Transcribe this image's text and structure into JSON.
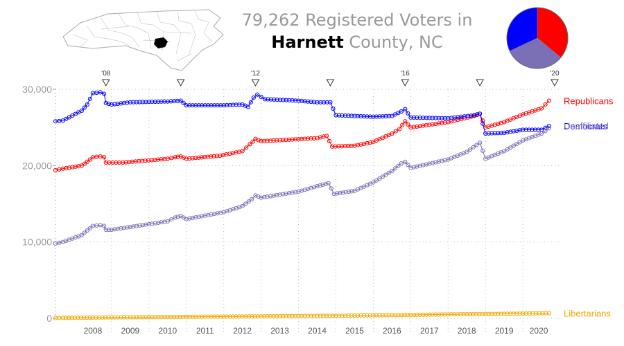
{
  "title": {
    "line1": "79,262 Registered Voters in",
    "county": "Harnett",
    "line2_rest": "County, NC"
  },
  "colors": {
    "republicans": "#ff0000",
    "democrats": "#0000ff",
    "unaffiliated": "#7b6fb5",
    "libertarians": "#f0a800",
    "axis": "#999999",
    "grid": "#bbbbbb"
  },
  "chart_data": {
    "type": "line",
    "ylim": [
      0,
      30000
    ],
    "y_ticks": [
      {
        "value": 0,
        "label": "0"
      },
      {
        "value": 10000,
        "label": "10,000"
      },
      {
        "value": 20000,
        "label": "20,000"
      },
      {
        "value": 30000,
        "label": "30,000"
      }
    ],
    "xlim": [
      2007.5,
      2020.85
    ],
    "x_ticks": [
      "2008",
      "2009",
      "2010",
      "2011",
      "2012",
      "2013",
      "2014",
      "2015",
      "2016",
      "2017",
      "2018",
      "2019",
      "2020"
    ],
    "election_markers": [
      {
        "x": 2008.85,
        "label": "'08"
      },
      {
        "x": 2010.85,
        "label": ""
      },
      {
        "x": 2012.85,
        "label": "'12"
      },
      {
        "x": 2014.85,
        "label": ""
      },
      {
        "x": 2016.85,
        "label": "'16"
      },
      {
        "x": 2018.85,
        "label": ""
      },
      {
        "x": 2020.85,
        "label": "'20"
      }
    ],
    "series": [
      {
        "name": "Republicans",
        "color": "#ff0000",
        "points": [
          [
            2007.5,
            19400
          ],
          [
            2007.7,
            19600
          ],
          [
            2008.2,
            20000
          ],
          [
            2008.35,
            20500
          ],
          [
            2008.5,
            21100
          ],
          [
            2008.7,
            21200
          ],
          [
            2008.8,
            21100
          ],
          [
            2008.85,
            20400
          ],
          [
            2009.3,
            20400
          ],
          [
            2010.5,
            20900
          ],
          [
            2010.7,
            21100
          ],
          [
            2010.85,
            21200
          ],
          [
            2011.0,
            20900
          ],
          [
            2011.9,
            21300
          ],
          [
            2012.5,
            21900
          ],
          [
            2012.7,
            22800
          ],
          [
            2012.85,
            23500
          ],
          [
            2013.0,
            23200
          ],
          [
            2014.5,
            23600
          ],
          [
            2014.75,
            23900
          ],
          [
            2014.9,
            22500
          ],
          [
            2015.5,
            22600
          ],
          [
            2016.0,
            23100
          ],
          [
            2016.5,
            24200
          ],
          [
            2016.7,
            24800
          ],
          [
            2016.85,
            25800
          ],
          [
            2017.0,
            25000
          ],
          [
            2018.0,
            25700
          ],
          [
            2018.7,
            26500
          ],
          [
            2018.85,
            26800
          ],
          [
            2019.0,
            25000
          ],
          [
            2019.5,
            25700
          ],
          [
            2020.0,
            26700
          ],
          [
            2020.5,
            27500
          ],
          [
            2020.7,
            28500
          ]
        ]
      },
      {
        "name": "Democrats",
        "color": "#0000ff",
        "points": [
          [
            2007.5,
            25800
          ],
          [
            2007.7,
            25900
          ],
          [
            2008.2,
            27200
          ],
          [
            2008.35,
            28000
          ],
          [
            2008.5,
            29500
          ],
          [
            2008.7,
            29600
          ],
          [
            2008.8,
            29400
          ],
          [
            2008.85,
            28200
          ],
          [
            2009.0,
            28000
          ],
          [
            2009.5,
            28300
          ],
          [
            2010.5,
            28400
          ],
          [
            2010.85,
            28500
          ],
          [
            2011.0,
            27900
          ],
          [
            2012.0,
            27900
          ],
          [
            2012.5,
            28000
          ],
          [
            2012.65,
            27700
          ],
          [
            2012.8,
            28900
          ],
          [
            2012.9,
            29300
          ],
          [
            2013.1,
            28700
          ],
          [
            2014.0,
            28500
          ],
          [
            2014.5,
            28300
          ],
          [
            2014.85,
            28300
          ],
          [
            2015.0,
            26600
          ],
          [
            2016.0,
            26400
          ],
          [
            2016.5,
            26500
          ],
          [
            2016.75,
            27100
          ],
          [
            2016.85,
            27400
          ],
          [
            2017.0,
            26300
          ],
          [
            2018.0,
            26200
          ],
          [
            2018.7,
            26600
          ],
          [
            2018.85,
            26800
          ],
          [
            2019.0,
            24200
          ],
          [
            2019.5,
            24300
          ],
          [
            2020.0,
            24700
          ],
          [
            2020.5,
            24700
          ],
          [
            2020.7,
            25200
          ]
        ]
      },
      {
        "name": "Unaffiliated",
        "color": "#7b6fb5",
        "points": [
          [
            2007.5,
            9800
          ],
          [
            2007.7,
            10000
          ],
          [
            2008.2,
            10900
          ],
          [
            2008.35,
            11500
          ],
          [
            2008.5,
            12100
          ],
          [
            2008.7,
            12200
          ],
          [
            2008.8,
            12100
          ],
          [
            2008.85,
            11600
          ],
          [
            2009.0,
            11600
          ],
          [
            2010.5,
            12700
          ],
          [
            2010.7,
            13200
          ],
          [
            2010.85,
            13400
          ],
          [
            2011.0,
            13000
          ],
          [
            2012.0,
            13900
          ],
          [
            2012.5,
            14700
          ],
          [
            2012.75,
            15600
          ],
          [
            2012.85,
            16100
          ],
          [
            2013.0,
            15800
          ],
          [
            2014.0,
            16600
          ],
          [
            2014.5,
            17300
          ],
          [
            2014.8,
            17700
          ],
          [
            2014.95,
            16300
          ],
          [
            2015.5,
            16700
          ],
          [
            2016.0,
            17800
          ],
          [
            2016.5,
            19300
          ],
          [
            2016.75,
            20300
          ],
          [
            2016.85,
            20500
          ],
          [
            2017.0,
            19700
          ],
          [
            2018.0,
            20800
          ],
          [
            2018.5,
            21800
          ],
          [
            2018.85,
            23000
          ],
          [
            2019.0,
            20900
          ],
          [
            2019.5,
            21900
          ],
          [
            2020.0,
            23300
          ],
          [
            2020.5,
            24200
          ],
          [
            2020.7,
            24900
          ]
        ]
      },
      {
        "name": "Libertarians",
        "color": "#f0a800",
        "points": [
          [
            2007.5,
            40
          ],
          [
            2007.7,
            50
          ],
          [
            2008.5,
            100
          ],
          [
            2009.0,
            120
          ],
          [
            2010.0,
            160
          ],
          [
            2011.0,
            200
          ],
          [
            2012.0,
            230
          ],
          [
            2013.0,
            260
          ],
          [
            2014.0,
            300
          ],
          [
            2015.0,
            330
          ],
          [
            2016.0,
            400
          ],
          [
            2017.0,
            450
          ],
          [
            2018.0,
            520
          ],
          [
            2019.0,
            560
          ],
          [
            2020.0,
            620
          ],
          [
            2020.7,
            680
          ]
        ]
      }
    ]
  },
  "pie": [
    {
      "name": "Republicans",
      "fraction": 0.36,
      "color": "#ff0000"
    },
    {
      "name": "Unaffiliated",
      "fraction": 0.32,
      "color": "#7b6fb5"
    },
    {
      "name": "Democrats",
      "fraction": 0.32,
      "color": "#0000ff"
    }
  ]
}
